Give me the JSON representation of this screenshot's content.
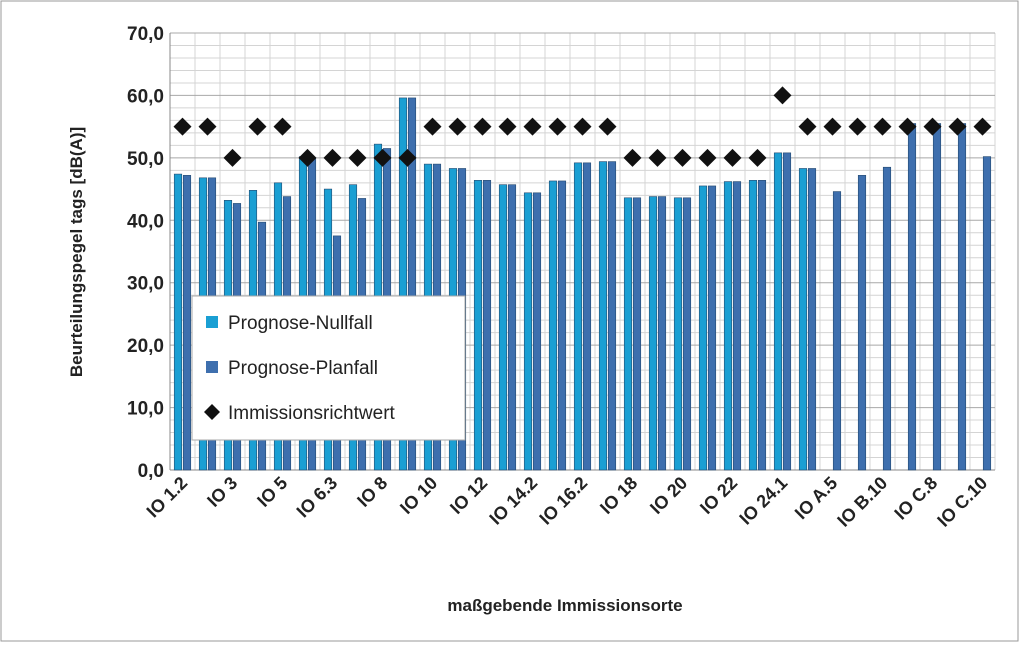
{
  "chart_data": {
    "type": "bar",
    "y_axis_label": "Beurteilungspegel tags [dB(A)]",
    "x_axis_label": "maßgebende Immissionsorte",
    "categories": [
      "IO 1.2",
      null,
      "IO 3",
      null,
      "IO 5",
      null,
      "IO 6.3",
      null,
      "IO 8",
      null,
      "IO 10",
      null,
      "IO 12",
      null,
      "IO 14.2",
      null,
      "IO 16.2",
      null,
      "IO 18",
      null,
      "IO 20",
      null,
      "IO 22",
      null,
      "IO 24.1",
      null,
      "IO A.5",
      null,
      "IO B.10",
      null,
      "IO C.8",
      null,
      "IO C.10"
    ],
    "series": [
      {
        "name": "Prognose-Nullfall",
        "color": "#1a9fd3",
        "kind": "bar",
        "values": [
          47.4,
          46.8,
          43.2,
          44.8,
          46.0,
          50.2,
          45.0,
          45.7,
          52.2,
          59.6,
          49.0,
          48.3,
          46.4,
          45.7,
          44.4,
          46.3,
          49.2,
          49.4,
          43.6,
          43.8,
          43.6,
          45.5,
          46.2,
          46.4,
          50.8,
          48.3,
          null,
          null,
          null,
          null,
          null,
          null,
          null
        ]
      },
      {
        "name": "Prognose-Planfall",
        "color": "#3e6fae",
        "kind": "bar",
        "values": [
          47.2,
          46.8,
          42.7,
          39.7,
          43.8,
          50.0,
          37.5,
          43.5,
          51.5,
          59.6,
          49.0,
          48.3,
          46.4,
          45.7,
          44.4,
          46.3,
          49.2,
          49.4,
          43.6,
          43.8,
          43.6,
          45.5,
          46.2,
          46.4,
          50.8,
          48.3,
          44.6,
          47.2,
          48.5,
          55.5,
          55.5,
          55.5,
          50.2
        ]
      },
      {
        "name": "Immissionsrichtwert",
        "color": "#111111",
        "kind": "marker",
        "values": [
          55,
          55,
          50,
          55,
          55,
          50,
          50,
          50,
          50,
          50,
          55,
          55,
          55,
          55,
          55,
          55,
          55,
          55,
          50,
          50,
          50,
          50,
          50,
          50,
          60,
          55,
          55,
          55,
          55,
          55,
          55,
          55,
          55
        ]
      }
    ],
    "ylim": [
      0,
      70
    ],
    "yticks": [
      {
        "value": 0,
        "label": "0,0"
      },
      {
        "value": 10,
        "label": "10,0"
      },
      {
        "value": 20,
        "label": "20,0"
      },
      {
        "value": 30,
        "label": "30,0"
      },
      {
        "value": 40,
        "label": "40,0"
      },
      {
        "value": 50,
        "label": "50,0"
      },
      {
        "value": 60,
        "label": "60,0"
      },
      {
        "value": 70,
        "label": "70,0"
      }
    ],
    "yminorticks": [
      2,
      4,
      6,
      8,
      12,
      14,
      16,
      18,
      22,
      24,
      26,
      28,
      32,
      34,
      36,
      38,
      42,
      44,
      46,
      48,
      52,
      54,
      56,
      58,
      62,
      64,
      66,
      68
    ],
    "grid": true
  }
}
